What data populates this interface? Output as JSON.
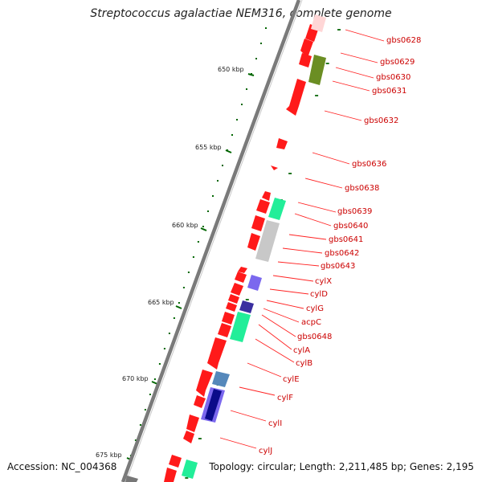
{
  "title": "Streptococcus agalactiae NEM316, complete genome",
  "footer": {
    "accession": "Accession: NC_004368",
    "topology": "Topology: circular; Length: 2,211,485 bp; Genes: 2,195"
  },
  "kbp_ticks": [
    "650 kbp",
    "655 kbp",
    "660 kbp",
    "665 kbp",
    "670 kbp",
    "675 kbp"
  ],
  "colors": {
    "backbone": "#777777",
    "gene": "#ff0000",
    "tick": "#006600",
    "label": "#cc0000",
    "leader_line": "#ff0000"
  },
  "genes": [
    {
      "label": "gbs0628"
    },
    {
      "label": "gbs0629"
    },
    {
      "label": "gbs0630"
    },
    {
      "label": "gbs0631"
    },
    {
      "label": "gbs0632"
    },
    {
      "label": "gbs0636"
    },
    {
      "label": "gbs0638"
    },
    {
      "label": "gbs0639"
    },
    {
      "label": "gbs0640"
    },
    {
      "label": "gbs0641"
    },
    {
      "label": "gbs0642"
    },
    {
      "label": "gbs0643"
    },
    {
      "label": "cylX"
    },
    {
      "label": "cylD"
    },
    {
      "label": "cylG"
    },
    {
      "label": "acpC"
    },
    {
      "label": "gbs0648"
    },
    {
      "label": "cylA"
    },
    {
      "label": "cylB"
    },
    {
      "label": "cylE"
    },
    {
      "label": "cylF"
    },
    {
      "label": "cylI"
    },
    {
      "label": "cylJ"
    }
  ]
}
